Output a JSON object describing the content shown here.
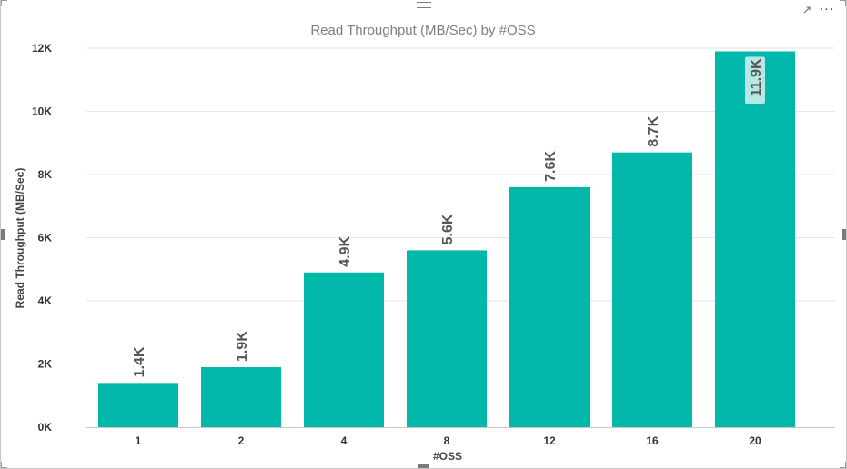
{
  "visual": {
    "focus_icon": "focus-mode-icon",
    "more_icon": "more-options-icon",
    "more_glyph": "···"
  },
  "colors": {
    "bar": "#01B8AA",
    "gridline": "#e6e6e6",
    "label_highlight": "#b8e8e4"
  },
  "chart_data": {
    "type": "bar",
    "title": "Read Throughput (MB/Sec) by #OSS",
    "xlabel": "#OSS",
    "ylabel": "Read Throughput (MB/Sec)",
    "categories": [
      "1",
      "2",
      "4",
      "8",
      "12",
      "16",
      "20"
    ],
    "values": [
      1400,
      1900,
      4900,
      5600,
      7600,
      8700,
      11900
    ],
    "data_labels": [
      "1.4K",
      "1.9K",
      "4.9K",
      "5.6K",
      "7.6K",
      "8.7K",
      "11.9K"
    ],
    "ylim": [
      0,
      12000
    ],
    "yticks": [
      0,
      2000,
      4000,
      6000,
      8000,
      10000,
      12000
    ],
    "ytick_labels": [
      "0K",
      "2K",
      "4K",
      "6K",
      "8K",
      "10K",
      "12K"
    ],
    "grid": true,
    "legend": "none"
  }
}
